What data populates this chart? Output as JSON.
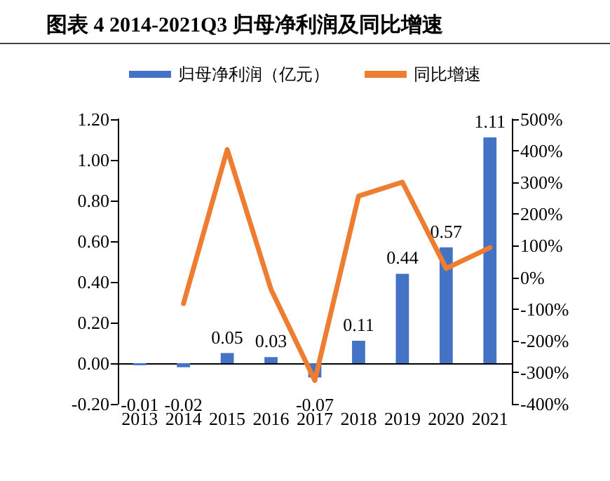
{
  "chart_data": {
    "type": "bar",
    "title": "图表 4 2014-2021Q3 归母净利润及同比增速",
    "categories": [
      "2013",
      "2014",
      "2015",
      "2016",
      "2017",
      "2018",
      "2019",
      "2020",
      "2021"
    ],
    "series": [
      {
        "name": "归母净利润（亿元）",
        "color": "#4472c4",
        "values": [
          -0.01,
          -0.02,
          0.05,
          0.03,
          -0.07,
          0.11,
          0.44,
          0.57,
          1.11
        ],
        "value_labels": [
          "-0.01",
          "-0.02",
          "0.05",
          "0.03",
          "-0.07",
          "0.11",
          "0.44",
          "0.57",
          "1.11"
        ]
      },
      {
        "name": "同比增速",
        "type": "line",
        "axis": "y2",
        "color": "#ed7d31",
        "marker": "none",
        "values": [
          null,
          -83,
          404,
          -38,
          -326,
          257,
          301,
          28,
          94
        ]
      }
    ],
    "ylim": [
      -0.2,
      1.2
    ],
    "yticks": [
      {
        "value": -0.2,
        "label": "-0.20"
      },
      {
        "value": 0,
        "label": "0.00"
      },
      {
        "value": 0.2,
        "label": "0.20"
      },
      {
        "value": 0.4,
        "label": "0.40"
      },
      {
        "value": 0.6,
        "label": "0.60"
      },
      {
        "value": 0.8,
        "label": "0.80"
      },
      {
        "value": 1.0,
        "label": "1.00"
      },
      {
        "value": 1.2,
        "label": "1.20"
      }
    ],
    "y2lim": [
      -400,
      500
    ],
    "y2ticks": [
      {
        "value": -400,
        "label": "-400%"
      },
      {
        "value": -300,
        "label": "-300%"
      },
      {
        "value": -200,
        "label": "-200%"
      },
      {
        "value": -100,
        "label": "-100%"
      },
      {
        "value": 0,
        "label": "0%"
      },
      {
        "value": 100,
        "label": "100%"
      },
      {
        "value": 200,
        "label": "200%"
      },
      {
        "value": 300,
        "label": "300%"
      },
      {
        "value": 400,
        "label": "400%"
      },
      {
        "value": 500,
        "label": "500%"
      }
    ],
    "grid": false,
    "legend": "top"
  }
}
